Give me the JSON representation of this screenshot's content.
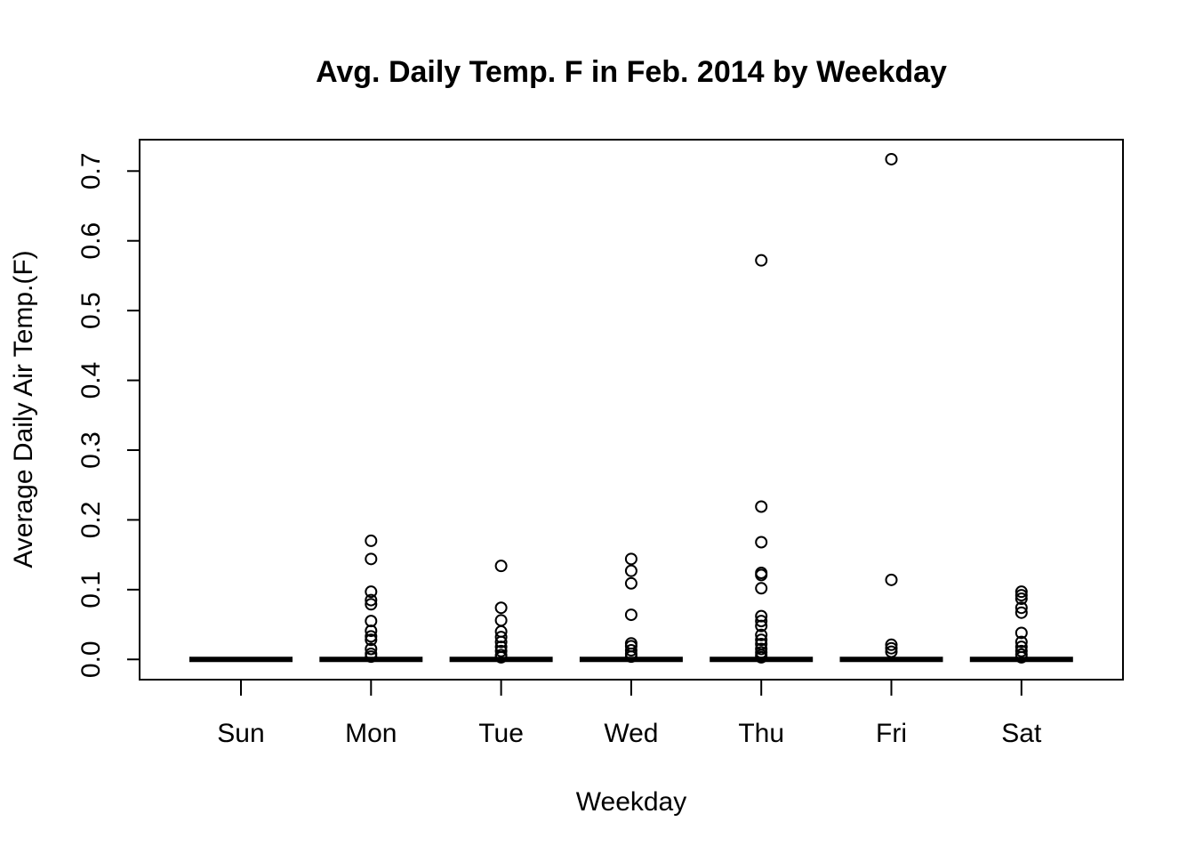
{
  "chart_data": {
    "type": "box",
    "title": "Avg. Daily Temp. F in Feb. 2014 by Weekday",
    "xlabel": "Weekday",
    "ylabel": "Average Daily Air Temp.(F)",
    "categories": [
      "Sun",
      "Mon",
      "Tue",
      "Wed",
      "Thu",
      "Fri",
      "Sat"
    ],
    "y_ticks": [
      0.0,
      0.1,
      0.2,
      0.3,
      0.4,
      0.5,
      0.6,
      0.7
    ],
    "y_tick_labels": [
      "0.0",
      "0.1",
      "0.2",
      "0.3",
      "0.4",
      "0.5",
      "0.6",
      "0.7"
    ],
    "ylim": [
      -0.029,
      0.745
    ],
    "grid": false,
    "legend": "none",
    "boxes": [
      {
        "category": "Sun",
        "median": 0,
        "q1": 0,
        "q3": 0,
        "outliers": []
      },
      {
        "category": "Mon",
        "median": 0,
        "q1": 0,
        "q3": 0,
        "outliers": [
          0.17,
          0.144,
          0.097,
          0.085,
          0.079,
          0.055,
          0.041,
          0.033,
          0.028,
          0.015,
          0.008,
          0.004
        ]
      },
      {
        "category": "Tue",
        "median": 0,
        "q1": 0,
        "q3": 0,
        "outliers": [
          0.134,
          0.074,
          0.056,
          0.04,
          0.032,
          0.025,
          0.018,
          0.012,
          0.006,
          0.003
        ]
      },
      {
        "category": "Wed",
        "median": 0,
        "q1": 0,
        "q3": 0,
        "outliers": [
          0.144,
          0.127,
          0.109,
          0.064,
          0.023,
          0.019,
          0.013,
          0.008,
          0.004
        ]
      },
      {
        "category": "Thu",
        "median": 0,
        "q1": 0,
        "q3": 0,
        "outliers": [
          0.572,
          0.219,
          0.168,
          0.124,
          0.121,
          0.102,
          0.062,
          0.055,
          0.048,
          0.035,
          0.028,
          0.022,
          0.015,
          0.01,
          0.006,
          0.003
        ]
      },
      {
        "category": "Fri",
        "median": 0,
        "q1": 0,
        "q3": 0,
        "outliers": [
          0.717,
          0.114,
          0.021,
          0.016,
          0.011
        ]
      },
      {
        "category": "Sat",
        "median": 0,
        "q1": 0,
        "q3": 0,
        "outliers": [
          0.097,
          0.092,
          0.087,
          0.074,
          0.067,
          0.038,
          0.025,
          0.018,
          0.012,
          0.007,
          0.003
        ]
      }
    ]
  }
}
